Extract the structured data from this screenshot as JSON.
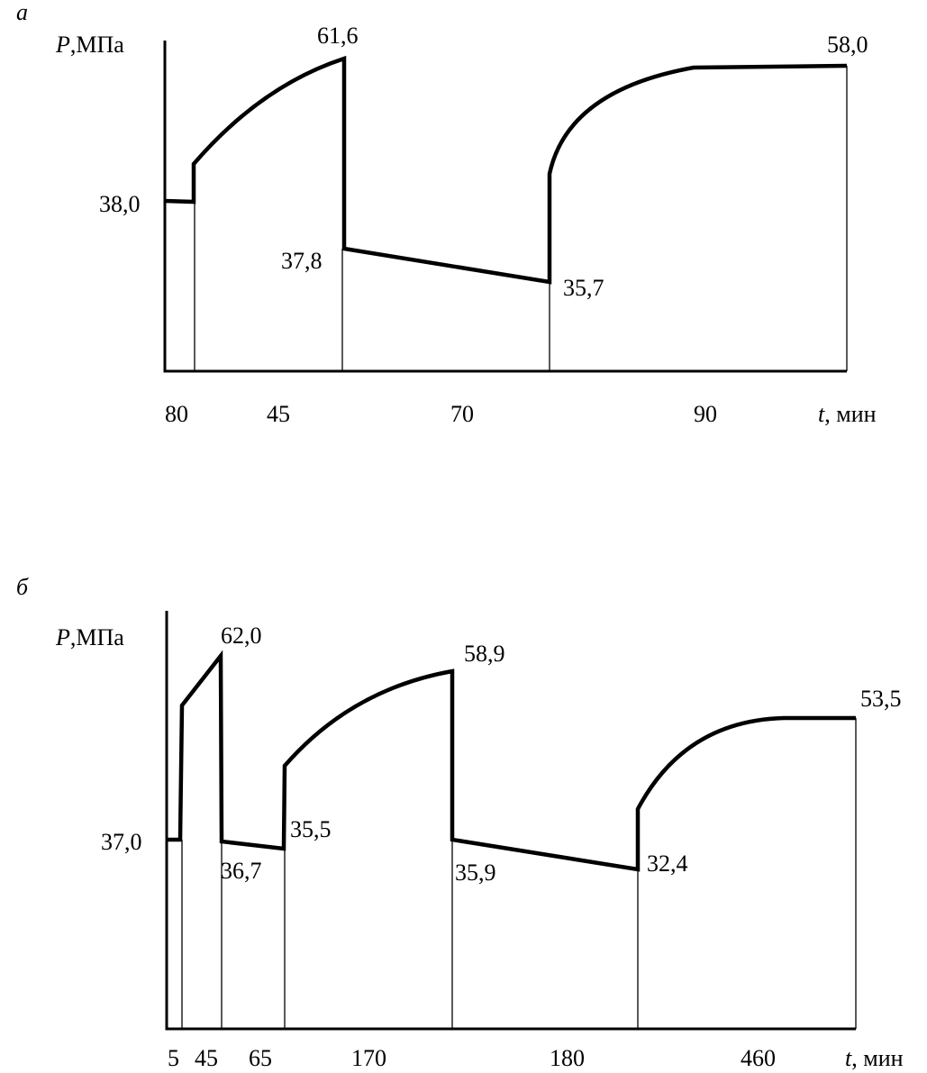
{
  "panels": [
    {
      "letter": "а",
      "y_axis": {
        "symbol": "P",
        "unit": ",МПа"
      },
      "x_axis": {
        "symbol": "t",
        "unit": ", мин"
      },
      "pressure_labels": [
        "61,6",
        "58,0",
        "38,0",
        "37,8",
        "35,7"
      ],
      "duration_labels": [
        "80",
        "45",
        "70",
        "90"
      ]
    },
    {
      "letter": "б",
      "y_axis": {
        "symbol": "P",
        "unit": ",МПа"
      },
      "x_axis": {
        "symbol": "t",
        "unit": ", мин"
      },
      "pressure_labels": [
        "62,0",
        "58,9",
        "53,5",
        "37,0",
        "36,7",
        "35,5",
        "35,9",
        "32,4"
      ],
      "duration_labels": [
        "5",
        "45",
        "65",
        "170",
        "180",
        "460"
      ]
    }
  ]
}
